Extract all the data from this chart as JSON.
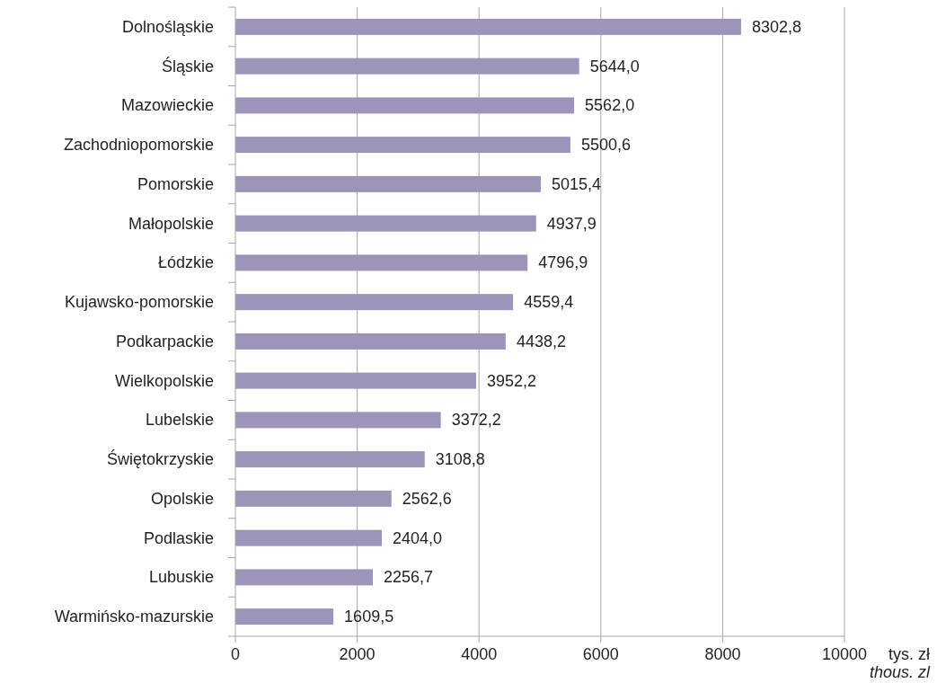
{
  "chart_data": {
    "type": "bar",
    "orientation": "horizontal",
    "categories": [
      "Dolnośląskie",
      "Śląskie",
      "Mazowieckie",
      "Zachodniopomorskie",
      "Pomorskie",
      "Małopolskie",
      "Łódzkie",
      "Kujawsko-pomorskie",
      "Podkarpackie",
      "Wielkopolskie",
      "Lubelskie",
      "Świętokrzyskie",
      "Opolskie",
      "Podlaskie",
      "Lubuskie",
      "Warmińsko-mazurskie"
    ],
    "values": [
      8302.8,
      5644.0,
      5562.0,
      5500.6,
      5015.4,
      4937.9,
      4796.9,
      4559.4,
      4438.2,
      3952.2,
      3372.2,
      3108.8,
      2562.6,
      2404.0,
      2256.7,
      1609.5
    ],
    "value_labels": [
      "8302,8",
      "5644,0",
      "5562,0",
      "5500,6",
      "5015,4",
      "4937,9",
      "4796,9",
      "4559,4",
      "4438,2",
      "3952,2",
      "3372,2",
      "3108,8",
      "2562,6",
      "2404,0",
      "2256,7",
      "1609,5"
    ],
    "color": "#9e94b9",
    "xlim": [
      0,
      10000
    ],
    "xticks": [
      0,
      2000,
      4000,
      6000,
      8000,
      10000
    ],
    "grid": "x",
    "xlabel": "tys. zł",
    "annotations": [
      "thous. zl"
    ]
  }
}
